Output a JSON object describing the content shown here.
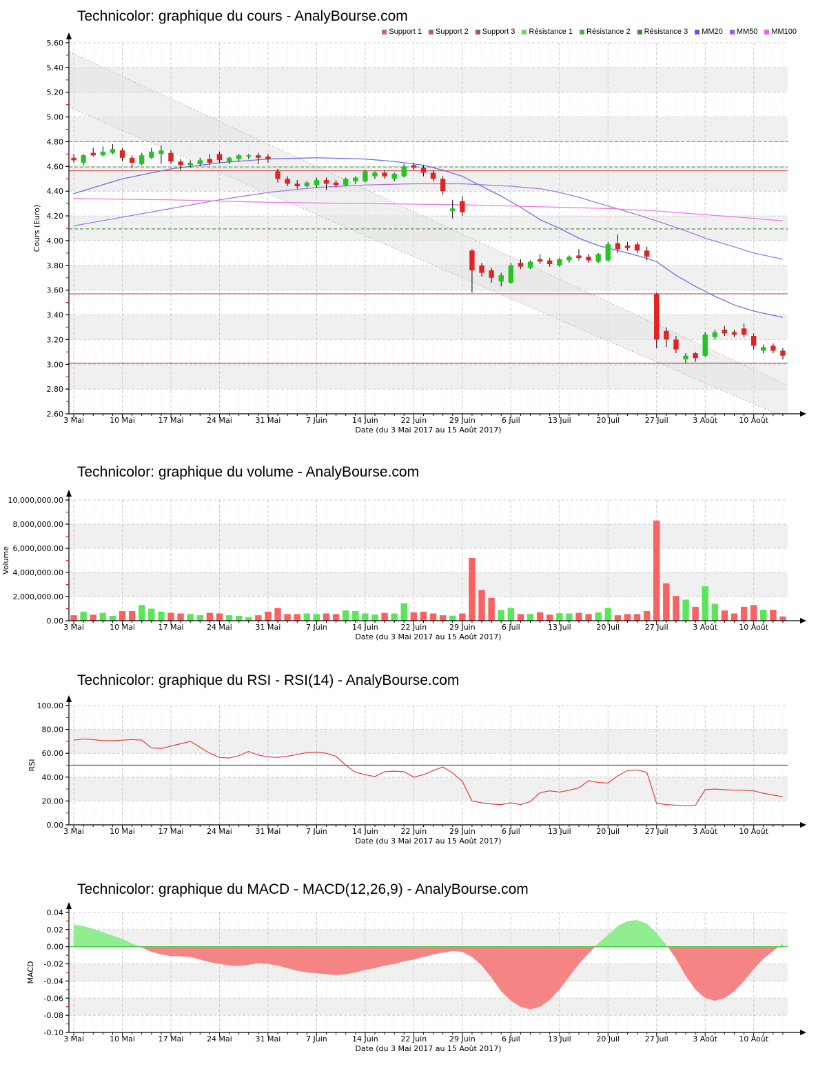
{
  "x_axis": {
    "labels": [
      "3 Mai",
      "10 Mai",
      "17 Mai",
      "24 Mai",
      "31 Mai",
      "7 Juin",
      "14 Juin",
      "22 Juin",
      "29 Juin",
      "6 Juil",
      "13 Juil",
      "20 Juil",
      "27 Juil",
      "3 Août",
      "10 Août"
    ],
    "tick_step": 5,
    "caption": "Date (du 3 Mai 2017 au 15 Août 2017)"
  },
  "chart_data": [
    {
      "type": "candlestick",
      "title": "Technicolor: graphique du cours - AnalyBourse.com",
      "ylabel": "Cours (Euro)",
      "ymin": 2.6,
      "ymax": 5.6,
      "ystep": 0.2,
      "yticks": [
        "2.60",
        "2.80",
        "3.00",
        "3.20",
        "3.40",
        "3.60",
        "3.80",
        "4.00",
        "4.20",
        "4.40",
        "4.60",
        "4.80",
        "5.00",
        "5.20",
        "5.40",
        "5.60"
      ],
      "legend": [
        {
          "label": "Support 1",
          "color": "#c96a6a"
        },
        {
          "label": "Support 2",
          "color": "#b96060"
        },
        {
          "label": "Support 3",
          "color": "#a85656"
        },
        {
          "label": "Résistance 1",
          "color": "#77d077"
        },
        {
          "label": "Résistance 2",
          "color": "#55a855"
        },
        {
          "label": "Résistance 3",
          "color": "#3d8b3d"
        },
        {
          "label": "MM20",
          "color": "#5a5ae0"
        },
        {
          "label": "MM50",
          "color": "#9b5fe0"
        },
        {
          "label": "MM100",
          "color": "#ef5fef"
        }
      ],
      "supports": [
        {
          "value": 4.565,
          "color": "#cd5c5c"
        },
        {
          "value": 3.57,
          "color": "#a35353"
        },
        {
          "value": 3.01,
          "color": "#a35353"
        }
      ],
      "resistances": [
        {
          "value": 4.8,
          "color": "#5faf5f"
        },
        {
          "value": 4.595,
          "color": "#55a855"
        },
        {
          "value": 4.095,
          "color": "#3e8e3e"
        }
      ],
      "channel": {
        "upper": [
          5.53,
          2.83
        ],
        "lower": [
          5.08,
          2.56
        ],
        "fill": "#e2e2e2",
        "line_color": "#b5b5b5"
      },
      "candle_up": "#21c621",
      "candle_down": "#e32222",
      "wick_color": "#000000",
      "ma": {
        "mm20": {
          "color": "#6f6fdf",
          "points": [
            [
              0,
              4.38
            ],
            [
              5,
              4.5
            ],
            [
              10,
              4.58
            ],
            [
              15,
              4.63
            ],
            [
              20,
              4.66
            ],
            [
              25,
              4.67
            ],
            [
              30,
              4.66
            ],
            [
              33,
              4.64
            ],
            [
              36,
              4.61
            ],
            [
              38,
              4.57
            ],
            [
              40,
              4.52
            ],
            [
              42,
              4.44
            ],
            [
              44,
              4.36
            ],
            [
              46,
              4.27
            ],
            [
              48,
              4.17
            ],
            [
              50,
              4.1
            ],
            [
              52,
              4.02
            ],
            [
              54,
              3.96
            ],
            [
              56,
              3.92
            ],
            [
              58,
              3.88
            ],
            [
              60,
              3.83
            ],
            [
              62,
              3.72
            ],
            [
              64,
              3.63
            ],
            [
              66,
              3.55
            ],
            [
              68,
              3.48
            ],
            [
              70,
              3.43
            ],
            [
              73,
              3.38
            ]
          ]
        },
        "mm50": {
          "color": "#a678e2",
          "points": [
            [
              0,
              4.12
            ],
            [
              5,
              4.19
            ],
            [
              10,
              4.26
            ],
            [
              15,
              4.33
            ],
            [
              20,
              4.39
            ],
            [
              25,
              4.43
            ],
            [
              30,
              4.45
            ],
            [
              35,
              4.46
            ],
            [
              40,
              4.46
            ],
            [
              45,
              4.44
            ],
            [
              48,
              4.42
            ],
            [
              50,
              4.39
            ],
            [
              52,
              4.35
            ],
            [
              55,
              4.28
            ],
            [
              58,
              4.21
            ],
            [
              60,
              4.16
            ],
            [
              63,
              4.08
            ],
            [
              65,
              4.02
            ],
            [
              68,
              3.95
            ],
            [
              70,
              3.9
            ],
            [
              73,
              3.85
            ]
          ]
        },
        "mm100": {
          "color": "#ee7ae2",
          "points": [
            [
              0,
              4.34
            ],
            [
              10,
              4.33
            ],
            [
              20,
              4.31
            ],
            [
              30,
              4.3
            ],
            [
              40,
              4.29
            ],
            [
              50,
              4.27
            ],
            [
              55,
              4.26
            ],
            [
              60,
              4.24
            ],
            [
              65,
              4.21
            ],
            [
              70,
              4.18
            ],
            [
              73,
              4.16
            ]
          ]
        }
      },
      "ohlc": [
        [
          4.67,
          4.7,
          4.63,
          4.65
        ],
        [
          4.63,
          4.7,
          4.61,
          4.69
        ],
        [
          4.71,
          4.75,
          4.68,
          4.69
        ],
        [
          4.69,
          4.76,
          4.68,
          4.72
        ],
        [
          4.71,
          4.78,
          4.7,
          4.74
        ],
        [
          4.73,
          4.75,
          4.64,
          4.67
        ],
        [
          4.67,
          4.69,
          4.59,
          4.63
        ],
        [
          4.62,
          4.71,
          4.61,
          4.69
        ],
        [
          4.67,
          4.75,
          4.66,
          4.72
        ],
        [
          4.7,
          4.77,
          4.62,
          4.73
        ],
        [
          4.71,
          4.73,
          4.62,
          4.64
        ],
        [
          4.64,
          4.66,
          4.57,
          4.61
        ],
        [
          4.61,
          4.65,
          4.59,
          4.63
        ],
        [
          4.62,
          4.67,
          4.6,
          4.65
        ],
        [
          4.66,
          4.7,
          4.61,
          4.63
        ],
        [
          4.7,
          4.72,
          4.63,
          4.65
        ],
        [
          4.64,
          4.68,
          4.62,
          4.67
        ],
        [
          4.66,
          4.7,
          4.64,
          4.69
        ],
        [
          4.68,
          4.7,
          4.66,
          4.69
        ],
        [
          4.69,
          4.71,
          4.62,
          4.67
        ],
        [
          4.68,
          4.7,
          4.63,
          4.66
        ],
        [
          4.56,
          4.58,
          4.47,
          4.5
        ],
        [
          4.5,
          4.52,
          4.44,
          4.46
        ],
        [
          4.46,
          4.49,
          4.42,
          4.44
        ],
        [
          4.44,
          4.48,
          4.43,
          4.47
        ],
        [
          4.45,
          4.51,
          4.43,
          4.49
        ],
        [
          4.49,
          4.51,
          4.41,
          4.46
        ],
        [
          4.47,
          4.49,
          4.43,
          4.45
        ],
        [
          4.45,
          4.51,
          4.44,
          4.5
        ],
        [
          4.48,
          4.52,
          4.46,
          4.51
        ],
        [
          4.48,
          4.57,
          4.47,
          4.56
        ],
        [
          4.52,
          4.56,
          4.5,
          4.55
        ],
        [
          4.55,
          4.57,
          4.5,
          4.52
        ],
        [
          4.5,
          4.55,
          4.48,
          4.54
        ],
        [
          4.52,
          4.62,
          4.51,
          4.6
        ],
        [
          4.61,
          4.63,
          4.57,
          4.59
        ],
        [
          4.59,
          4.61,
          4.52,
          4.55
        ],
        [
          4.55,
          4.57,
          4.48,
          4.5
        ],
        [
          4.5,
          4.52,
          4.37,
          4.4
        ],
        [
          4.24,
          4.33,
          4.18,
          4.26
        ],
        [
          4.32,
          4.36,
          4.2,
          4.23
        ],
        [
          3.92,
          3.93,
          3.58,
          3.76
        ],
        [
          3.8,
          3.82,
          3.71,
          3.74
        ],
        [
          3.76,
          3.78,
          3.66,
          3.7
        ],
        [
          3.67,
          3.74,
          3.63,
          3.72
        ],
        [
          3.66,
          3.82,
          3.65,
          3.8
        ],
        [
          3.82,
          3.85,
          3.77,
          3.79
        ],
        [
          3.78,
          3.84,
          3.77,
          3.83
        ],
        [
          3.85,
          3.89,
          3.81,
          3.83
        ],
        [
          3.84,
          3.86,
          3.79,
          3.81
        ],
        [
          3.8,
          3.86,
          3.79,
          3.85
        ],
        [
          3.84,
          3.88,
          3.82,
          3.87
        ],
        [
          3.88,
          3.93,
          3.84,
          3.86
        ],
        [
          3.87,
          3.89,
          3.82,
          3.84
        ],
        [
          3.83,
          3.9,
          3.82,
          3.89
        ],
        [
          3.84,
          3.99,
          3.83,
          3.97
        ],
        [
          3.98,
          4.05,
          3.9,
          3.93
        ],
        [
          3.96,
          3.99,
          3.92,
          3.94
        ],
        [
          3.97,
          3.99,
          3.9,
          3.92
        ],
        [
          3.92,
          3.95,
          3.84,
          3.87
        ],
        [
          3.57,
          3.58,
          3.13,
          3.2
        ],
        [
          3.27,
          3.3,
          3.14,
          3.2
        ],
        [
          3.2,
          3.23,
          3.09,
          3.12
        ],
        [
          3.04,
          3.09,
          3.01,
          3.07
        ],
        [
          3.09,
          3.1,
          3.02,
          3.05
        ],
        [
          3.07,
          3.26,
          3.06,
          3.24
        ],
        [
          3.22,
          3.28,
          3.2,
          3.26
        ],
        [
          3.28,
          3.31,
          3.23,
          3.25
        ],
        [
          3.26,
          3.28,
          3.22,
          3.24
        ],
        [
          3.29,
          3.33,
          3.22,
          3.24
        ],
        [
          3.23,
          3.25,
          3.12,
          3.15
        ],
        [
          3.11,
          3.16,
          3.09,
          3.14
        ],
        [
          3.15,
          3.17,
          3.09,
          3.11
        ],
        [
          3.11,
          3.13,
          3.04,
          3.07
        ]
      ]
    },
    {
      "type": "bar",
      "title": "Technicolor: graphique du volume - AnalyBourse.com",
      "ylabel": "Volume",
      "ymin": 0,
      "ymax": 10000000,
      "ystep": 2000000,
      "yticks": [
        "0.00",
        "2,000,000.00",
        "4,000,000.00",
        "6,000,000.00",
        "8,000,000.00",
        "10,000,000.00"
      ],
      "bar_up": "#59e659",
      "bar_down": "#fa6161",
      "values_millions": [
        0.45,
        0.75,
        0.5,
        0.65,
        0.4,
        0.8,
        0.8,
        1.3,
        1.0,
        0.75,
        0.65,
        0.6,
        0.55,
        0.45,
        0.65,
        0.6,
        0.45,
        0.4,
        0.3,
        0.45,
        0.75,
        1.05,
        0.55,
        0.55,
        0.6,
        0.55,
        0.6,
        0.55,
        0.85,
        0.8,
        0.6,
        0.5,
        0.65,
        0.6,
        1.45,
        0.7,
        0.75,
        0.6,
        0.45,
        0.42,
        0.6,
        5.2,
        2.55,
        1.9,
        0.88,
        1.05,
        0.55,
        0.55,
        0.7,
        0.5,
        0.62,
        0.6,
        0.65,
        0.55,
        0.68,
        1.05,
        0.45,
        0.55,
        0.55,
        0.8,
        8.3,
        3.1,
        2.05,
        1.75,
        1.15,
        2.85,
        1.4,
        0.85,
        0.6,
        1.15,
        1.3,
        0.9,
        0.9,
        0.35
      ]
    },
    {
      "type": "line",
      "title": "Technicolor: graphique du RSI - RSI(14) - AnalyBourse.com",
      "ylabel": "RSI",
      "ymin": 0,
      "ymax": 100,
      "ystep": 20,
      "yticks": [
        "0.00",
        "20.00",
        "40.00",
        "60.00",
        "80.00",
        "100.00"
      ],
      "midline": 50,
      "midline_color": "#555555",
      "line_color": "#e03c3c",
      "values": [
        71,
        72,
        71.5,
        70.5,
        70.5,
        71,
        71.5,
        71,
        64.5,
        64,
        66,
        68,
        70,
        65,
        60,
        56.5,
        56,
        58,
        61.5,
        58.5,
        57,
        56.5,
        57.5,
        59,
        60.5,
        61,
        60,
        57.5,
        50,
        44,
        42,
        40.5,
        44.5,
        45,
        44.5,
        40,
        42,
        45.5,
        48.5,
        43.5,
        36.5,
        20,
        18.5,
        17.5,
        17,
        18.5,
        17,
        19.5,
        27,
        28.5,
        27.5,
        29,
        31,
        37,
        35.5,
        35,
        41,
        45.5,
        46,
        44,
        18,
        17,
        16.5,
        16,
        16.5,
        29.5,
        30,
        29.5,
        29,
        29,
        28.5,
        26.5,
        25,
        23.5
      ]
    },
    {
      "type": "area",
      "title": "Technicolor: graphique du MACD - MACD(12,26,9) - AnalyBourse.com",
      "ylabel": "MACD",
      "ymin": -0.1,
      "ymax": 0.04,
      "ystep": 0.02,
      "yticks": [
        "-0.10",
        "-0.08",
        "-0.06",
        "-0.04",
        "-0.02",
        "0.00",
        "0.02",
        "0.04"
      ],
      "pos_color": "#90ee90",
      "neg_color": "#f58585",
      "zero_color": "#44c944",
      "values": [
        0.026,
        0.024,
        0.021,
        0.017,
        0.013,
        0.009,
        0.004,
        -0.001,
        -0.006,
        -0.009,
        -0.011,
        -0.011,
        -0.012,
        -0.015,
        -0.018,
        -0.02,
        -0.022,
        -0.0225,
        -0.021,
        -0.019,
        -0.02,
        -0.022,
        -0.025,
        -0.028,
        -0.03,
        -0.031,
        -0.032,
        -0.033,
        -0.032,
        -0.03,
        -0.027,
        -0.025,
        -0.022,
        -0.02,
        -0.017,
        -0.015,
        -0.012,
        -0.009,
        -0.007,
        -0.005,
        -0.006,
        -0.012,
        -0.022,
        -0.036,
        -0.052,
        -0.063,
        -0.07,
        -0.073,
        -0.07,
        -0.062,
        -0.05,
        -0.035,
        -0.02,
        -0.008,
        0.004,
        0.014,
        0.024,
        0.03,
        0.031,
        0.027,
        0.016,
        0.002,
        -0.014,
        -0.034,
        -0.05,
        -0.06,
        -0.063,
        -0.06,
        -0.052,
        -0.04,
        -0.026,
        -0.014,
        -0.005,
        0.004
      ]
    }
  ],
  "style": {
    "stripe_color": "#f0f0f0",
    "grid_color": "#cccccc",
    "fine_grid_color": "#e9e9e9",
    "axis_color": "#000000",
    "minor_tick_color": "#cc2222"
  }
}
